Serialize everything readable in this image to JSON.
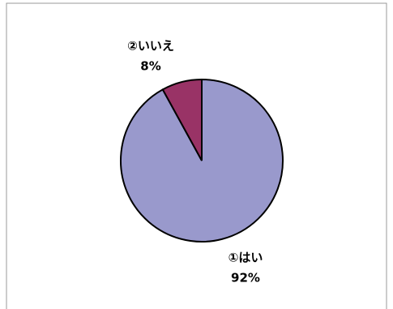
{
  "chart_data": {
    "type": "pie",
    "categories": [
      "①はい",
      "②いいえ"
    ],
    "values": [
      92,
      8
    ],
    "value_labels": [
      "92%",
      "8%"
    ],
    "colors": [
      "#9999cc",
      "#993366"
    ]
  }
}
